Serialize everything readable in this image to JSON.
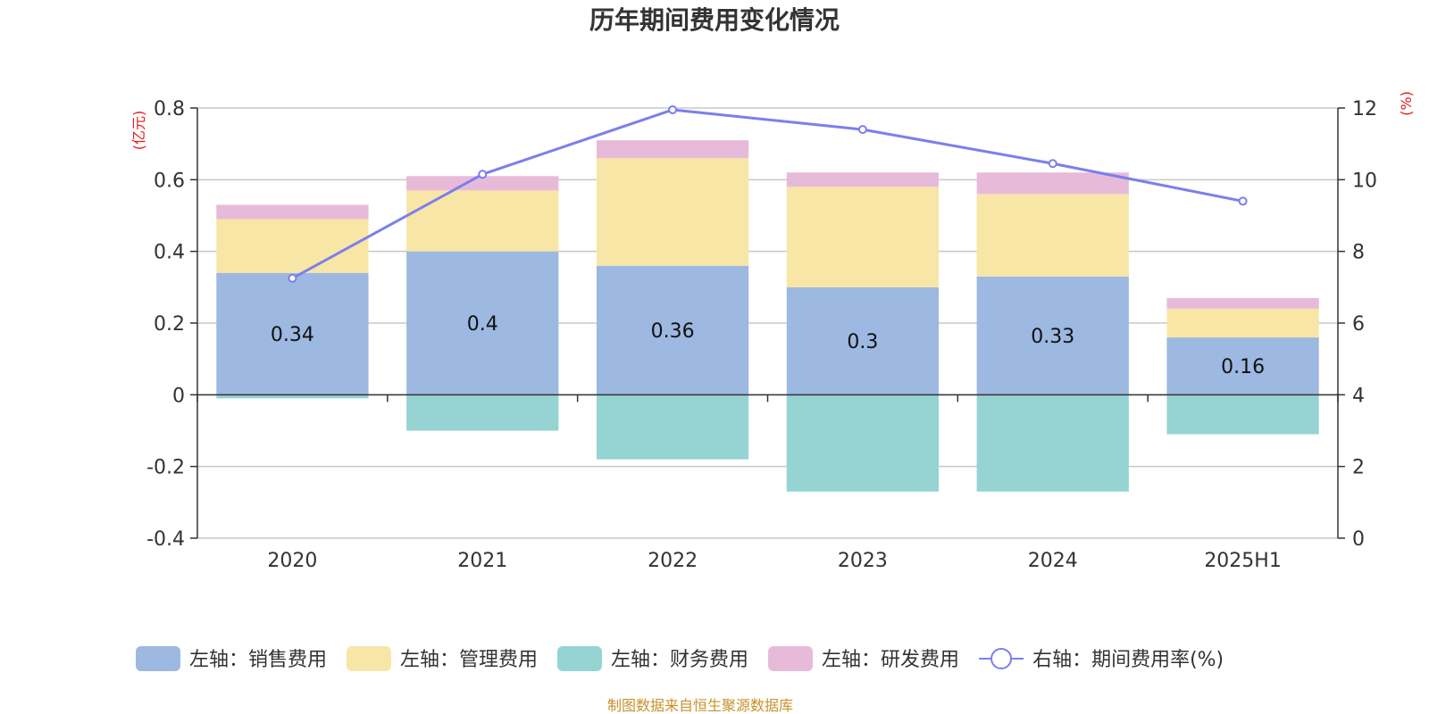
{
  "chart_data": {
    "type": "bar",
    "title": "历年期间费用变化情况",
    "categories": [
      "2020",
      "2021",
      "2022",
      "2023",
      "2024",
      "2025H1"
    ],
    "left_axis": {
      "unit": "(亿元)",
      "ylim": [
        -0.4,
        0.8
      ],
      "ticks": [
        "-0.4",
        "-0.2",
        "0",
        "0.2",
        "0.4",
        "0.6",
        "0.8"
      ]
    },
    "right_axis": {
      "unit": "(%)",
      "ylim": [
        0,
        12
      ],
      "ticks": [
        "0",
        "2",
        "4",
        "6",
        "8",
        "10",
        "12"
      ]
    },
    "series": [
      {
        "name": "左轴：销售费用",
        "type": "bar",
        "axis": "left",
        "color": "#9db8e1",
        "values": [
          0.34,
          0.4,
          0.36,
          0.3,
          0.33,
          0.16
        ],
        "labels": [
          "0.34",
          "0.4",
          "0.36",
          "0.3",
          "0.33",
          "0.16"
        ]
      },
      {
        "name": "左轴：管理费用",
        "type": "bar",
        "axis": "left",
        "color": "#f8e6a6",
        "values": [
          0.15,
          0.17,
          0.3,
          0.28,
          0.23,
          0.08
        ]
      },
      {
        "name": "左轴：财务费用",
        "type": "bar",
        "axis": "left",
        "color": "#96d3d3",
        "values": [
          -0.01,
          -0.1,
          -0.18,
          -0.27,
          -0.27,
          -0.11
        ]
      },
      {
        "name": "左轴：研发费用",
        "type": "bar",
        "axis": "left",
        "color": "#e8bad9",
        "values": [
          0.04,
          0.04,
          0.05,
          0.04,
          0.06,
          0.03
        ]
      },
      {
        "name": "右轴：期间费用率(%)",
        "type": "line",
        "axis": "right",
        "color": "#7b7fec",
        "values": [
          7.25,
          10.15,
          11.95,
          11.4,
          10.45,
          9.4
        ]
      }
    ],
    "legend_position": "bottom",
    "grid": true
  },
  "source": "制图数据来自恒生聚源数据库"
}
